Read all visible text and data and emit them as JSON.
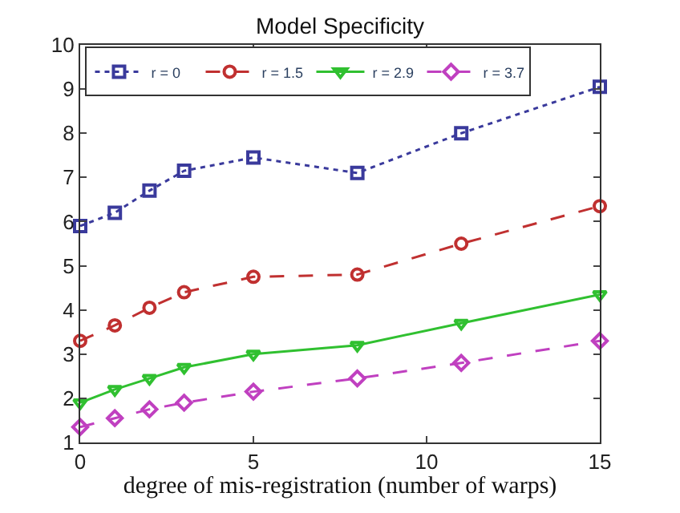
{
  "chart_data": {
    "type": "line",
    "title": "Model Specificity",
    "xlabel": "degree of mis-registration (number of warps)",
    "x": [
      0,
      1,
      2,
      3,
      5,
      8,
      11,
      15
    ],
    "series": [
      {
        "name": "r = 0",
        "color": "#3a3a9c",
        "marker": "square",
        "line_style": "dotted",
        "values": [
          5.9,
          6.2,
          6.7,
          7.15,
          7.45,
          7.1,
          8.0,
          9.05
        ]
      },
      {
        "name": "r = 1.5",
        "color": "#c03030",
        "marker": "circle",
        "line_style": "dashed",
        "values": [
          3.3,
          3.65,
          4.05,
          4.4,
          4.75,
          4.8,
          5.5,
          6.35
        ]
      },
      {
        "name": "r = 2.9",
        "color": "#30c030",
        "marker": "triangle",
        "line_style": "solid",
        "values": [
          1.9,
          2.2,
          2.45,
          2.7,
          3.0,
          3.2,
          3.7,
          4.35
        ]
      },
      {
        "name": "r = 3.7",
        "color": "#c040c0",
        "marker": "diamond",
        "line_style": "dashed",
        "values": [
          1.35,
          1.55,
          1.75,
          1.9,
          2.15,
          2.45,
          2.8,
          3.3
        ]
      }
    ],
    "xlim": [
      0,
      15
    ],
    "xticks": [
      0,
      5,
      10,
      15
    ],
    "ylim": [
      1,
      10
    ],
    "yticks": [
      1,
      2,
      3,
      4,
      5,
      6,
      7,
      8,
      9,
      10
    ],
    "legend": "top left"
  }
}
